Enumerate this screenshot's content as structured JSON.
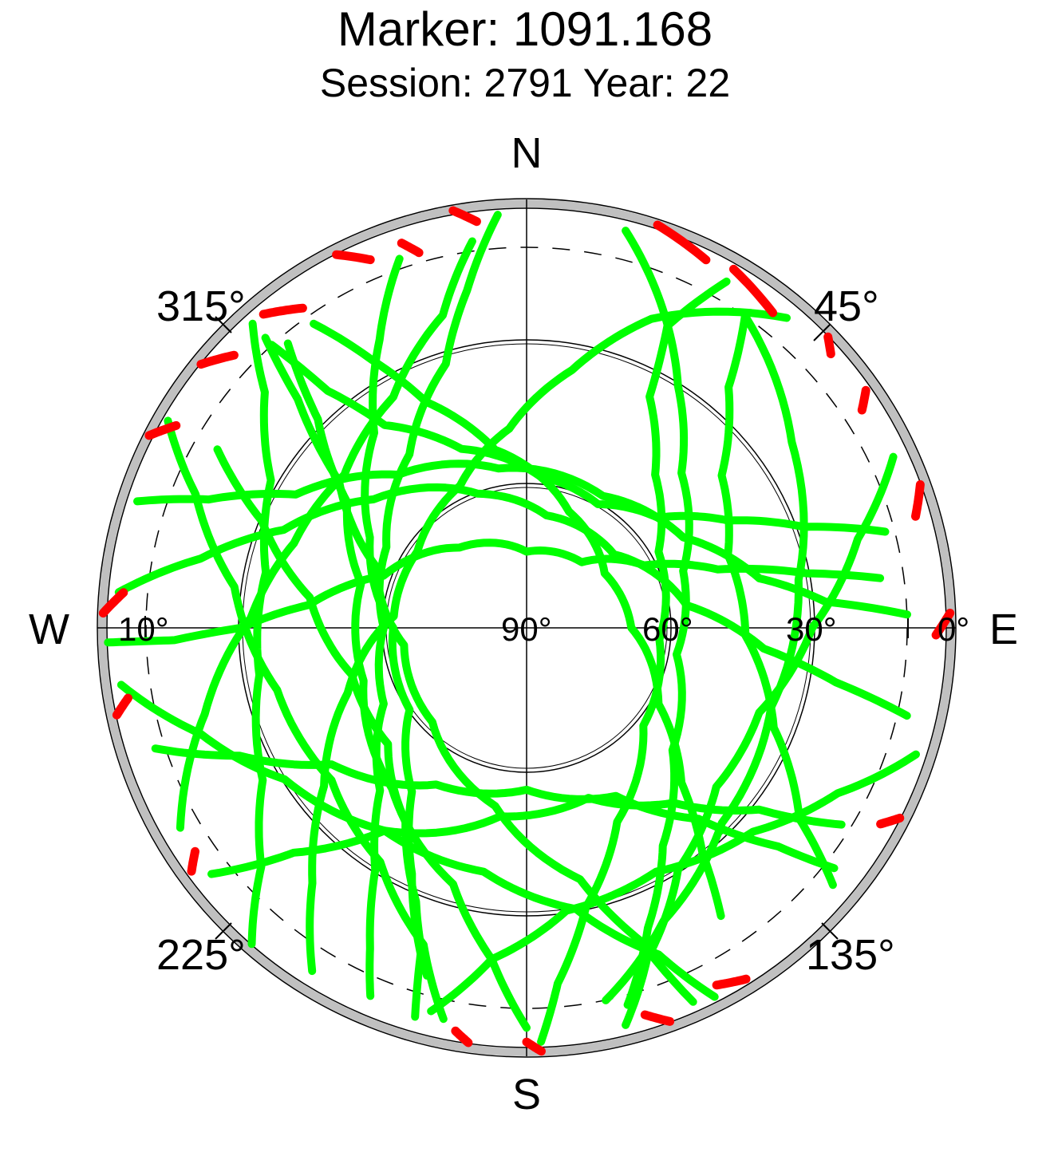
{
  "title": "Marker: 1091.168",
  "subtitle": "Session: 2791 Year: 22",
  "colors": {
    "background": "#ffffff",
    "tracked": "#00ff00",
    "masked": "#ff0000",
    "mask_band": "#c0c0c0",
    "grid": "#000000"
  },
  "chart_data": {
    "type": "scatter",
    "projection": "polar sky plot (azimuth / elevation)",
    "title": "Marker: 1091.168",
    "subtitle": "Session: 2791 Year: 22",
    "azimuth_range": [
      0,
      360
    ],
    "elevation_range": [
      0,
      90
    ],
    "grid": true,
    "cardinal_labels": [
      "N",
      "E",
      "S",
      "W"
    ],
    "azimuth_tick_labels": [
      "45°",
      "135°",
      "225°",
      "315°"
    ],
    "elevation_tick_labels": [
      "0°",
      "30°",
      "60°",
      "90°",
      "10°"
    ],
    "elevation_rings": [
      0,
      30,
      60
    ],
    "cutoff_elevation_dashed": 10,
    "series": [
      {
        "color": "#00ff00",
        "tracks": [
          [
            [
              40,
              5
            ],
            [
              22,
              20
            ],
            [
              10,
              35
            ],
            [
              -5,
              48
            ],
            [
              -25,
              57
            ],
            [
              -55,
              62
            ],
            [
              -85,
              62
            ],
            [
              -110,
              50
            ],
            [
              -128,
              36
            ],
            [
              -140,
              20
            ],
            [
              -148,
              5
            ]
          ],
          [
            [
              30,
              6
            ],
            [
              25,
              20
            ],
            [
              28,
              35
            ],
            [
              40,
              48
            ],
            [
              60,
              58
            ],
            [
              95,
              62
            ],
            [
              130,
              58
            ],
            [
              155,
              45
            ],
            [
              168,
              30
            ],
            [
              175,
              15
            ],
            [
              178,
              3
            ]
          ],
          [
            [
              325,
              12
            ],
            [
              330,
              25
            ],
            [
              336,
              38
            ],
            [
              350,
              52
            ],
            [
              20,
              64
            ],
            [
              55,
              70
            ],
            [
              90,
              68
            ],
            [
              120,
              58
            ],
            [
              135,
              44
            ],
            [
              142,
              30
            ],
            [
              146,
              17
            ]
          ],
          [
            [
              341,
              8
            ],
            [
              333,
              22
            ],
            [
              322,
              38
            ],
            [
              300,
              52
            ],
            [
              270,
              62
            ],
            [
              235,
              60
            ],
            [
              215,
              48
            ],
            [
              205,
              33
            ],
            [
              198,
              18
            ],
            [
              196,
              5
            ]
          ],
          [
            [
              14,
              4
            ],
            [
              23,
              17
            ],
            [
              32,
              30
            ],
            [
              45,
              44
            ],
            [
              70,
              55
            ],
            [
              100,
              58
            ],
            [
              130,
              50
            ],
            [
              148,
              36
            ],
            [
              158,
              22
            ],
            [
              165,
              8
            ]
          ],
          [
            [
              356,
              3
            ],
            [
              350,
              18
            ],
            [
              343,
              32
            ],
            [
              326,
              46
            ],
            [
              300,
              56
            ],
            [
              270,
              60
            ],
            [
              242,
              56
            ],
            [
              222,
              44
            ],
            [
              212,
              30
            ],
            [
              206,
              15
            ],
            [
              203,
              6
            ]
          ],
          [
            [
              288,
              4
            ],
            [
              292,
              18
            ],
            [
              300,
              34
            ],
            [
              320,
              48
            ],
            [
              350,
              56
            ],
            [
              30,
              58
            ],
            [
              60,
              52
            ],
            [
              78,
              40
            ],
            [
              85,
              27
            ],
            [
              88,
              10
            ]
          ],
          [
            [
              65,
              5
            ],
            [
              75,
              18
            ],
            [
              90,
              30
            ],
            [
              110,
              38
            ],
            [
              130,
              38
            ],
            [
              148,
              30
            ],
            [
              160,
              16
            ],
            [
              166,
              4
            ]
          ],
          [
            [
              318,
              10
            ],
            [
              320,
              25
            ],
            [
              325,
              38
            ],
            [
              340,
              50
            ],
            [
              5,
              58
            ],
            [
              30,
              60
            ],
            [
              50,
              54
            ],
            [
              62,
              42
            ],
            [
              70,
              28
            ],
            [
              75,
              12
            ]
          ],
          [
            [
              275,
              4
            ],
            [
              282,
              20
            ],
            [
              292,
              35
            ],
            [
              310,
              48
            ],
            [
              340,
              60
            ],
            [
              10,
              66
            ],
            [
              50,
              66
            ],
            [
              82,
              56
            ],
            [
              95,
              40
            ],
            [
              100,
              24
            ],
            [
              103,
              8
            ]
          ],
          [
            [
              240,
              6
            ],
            [
              255,
              20
            ],
            [
              272,
              32
            ],
            [
              290,
              38
            ],
            [
              310,
              40
            ],
            [
              330,
              34
            ],
            [
              345,
              22
            ],
            [
              352,
              8
            ]
          ],
          [
            [
              35,
              10
            ],
            [
              55,
              22
            ],
            [
              80,
              32
            ],
            [
              108,
              36
            ],
            [
              135,
              32
            ],
            [
              155,
              22
            ],
            [
              168,
              10
            ]
          ],
          [
            [
              300,
              3
            ],
            [
              292,
              15
            ],
            [
              278,
              28
            ],
            [
              256,
              36
            ],
            [
              232,
              38
            ],
            [
              212,
              32
            ],
            [
              198,
              20
            ],
            [
              192,
              6
            ]
          ],
          [
            [
              268,
              2
            ],
            [
              268,
              16
            ],
            [
              270,
              30
            ],
            [
              276,
              44
            ],
            [
              290,
              58
            ],
            [
              320,
              68
            ],
            [
              0,
              74
            ],
            [
              40,
              72
            ],
            [
              62,
              62
            ],
            [
              73,
              48
            ],
            [
              79,
              30
            ],
            [
              82,
              15
            ]
          ],
          [
            [
              221,
              2
            ],
            [
              228,
              15
            ],
            [
              240,
              26
            ],
            [
              260,
              33
            ],
            [
              282,
              34
            ],
            [
              300,
              28
            ],
            [
              312,
              16
            ],
            [
              318,
              4
            ]
          ],
          [
            [
              130,
              6
            ],
            [
              125,
              20
            ],
            [
              112,
              34
            ],
            [
              92,
              44
            ],
            [
              70,
              45
            ],
            [
              52,
              38
            ],
            [
              40,
              24
            ],
            [
              35,
              10
            ]
          ],
          [
            [
              180,
              6
            ],
            [
              186,
              20
            ],
            [
              196,
              34
            ],
            [
              220,
              46
            ],
            [
              252,
              54
            ],
            [
              285,
              54
            ],
            [
              305,
              44
            ],
            [
              315,
              28
            ],
            [
              320,
              12
            ]
          ],
          [
            [
              156,
              4
            ],
            [
              160,
              20
            ],
            [
              168,
              36
            ],
            [
              190,
              52
            ],
            [
              225,
              62
            ],
            [
              262,
              64
            ],
            [
              292,
              56
            ],
            [
              308,
              40
            ],
            [
              315,
              22
            ],
            [
              318,
              8
            ]
          ],
          [
            [
              108,
              4
            ],
            [
              118,
              16
            ],
            [
              132,
              26
            ],
            [
              152,
              32
            ],
            [
              172,
              30
            ],
            [
              186,
              20
            ],
            [
              194,
              7
            ]
          ],
          [
            [
              262,
              4
            ],
            [
              252,
              18
            ],
            [
              238,
              30
            ],
            [
              215,
              38
            ],
            [
              190,
              38
            ],
            [
              170,
              30
            ],
            [
              158,
              16
            ],
            [
              153,
              3
            ]
          ],
          [
            [
              232,
              6
            ],
            [
              226,
              22
            ],
            [
              215,
              38
            ],
            [
              188,
              50
            ],
            [
              160,
              52
            ],
            [
              140,
              42
            ],
            [
              128,
              28
            ],
            [
              122,
              12
            ]
          ],
          [
            [
              252,
              8
            ],
            [
              246,
              24
            ],
            [
              235,
              40
            ],
            [
              210,
              52
            ],
            [
              180,
              56
            ],
            [
              152,
              50
            ],
            [
              138,
              36
            ],
            [
              131,
              20
            ],
            [
              128,
              8
            ]
          ],
          [
            [
              300,
              15
            ],
            [
              292,
              30
            ],
            [
              278,
              44
            ],
            [
              255,
              52
            ],
            [
              230,
              52
            ],
            [
              212,
              42
            ],
            [
              202,
              28
            ],
            [
              196,
              14
            ]
          ]
        ]
      },
      {
        "color": "#ff0000",
        "tracks": [
          [
            [
              18,
              1
            ],
            [
              26,
              4
            ]
          ],
          [
            [
              30,
              3
            ],
            [
              38,
              6
            ]
          ],
          [
            [
              333,
              2
            ],
            [
              337,
              6
            ]
          ],
          [
            [
              320,
              4
            ],
            [
              325,
              8
            ]
          ],
          [
            [
              309,
              2
            ],
            [
              313,
              6
            ]
          ],
          [
            [
              297,
              1
            ],
            [
              300,
              5
            ]
          ],
          [
            [
              272,
              1
            ],
            [
              275,
              5
            ]
          ],
          [
            [
              258,
              2
            ],
            [
              260,
              5
            ]
          ],
          [
            [
              234,
              3
            ],
            [
              236,
              6
            ]
          ],
          [
            [
              188,
              2
            ],
            [
              190,
              4
            ]
          ],
          [
            [
              178,
              1
            ],
            [
              180,
              3
            ]
          ],
          [
            [
              160,
              2
            ],
            [
              163,
              5
            ]
          ],
          [
            [
              148,
              3
            ],
            [
              152,
              5
            ]
          ],
          [
            [
              117,
              2
            ],
            [
              119,
              5
            ]
          ],
          [
            [
              88,
              1
            ],
            [
              91,
              4
            ]
          ],
          [
            [
              70,
              2
            ],
            [
              74,
              5
            ]
          ],
          [
            [
              55,
              3
            ],
            [
              57,
              6
            ]
          ],
          [
            [
              46,
              2
            ],
            [
              48,
              4
            ]
          ],
          [
            [
              350,
              1
            ],
            [
              353,
              4
            ]
          ],
          [
            [
              342,
              5
            ],
            [
              344,
              8
            ]
          ]
        ]
      }
    ]
  }
}
